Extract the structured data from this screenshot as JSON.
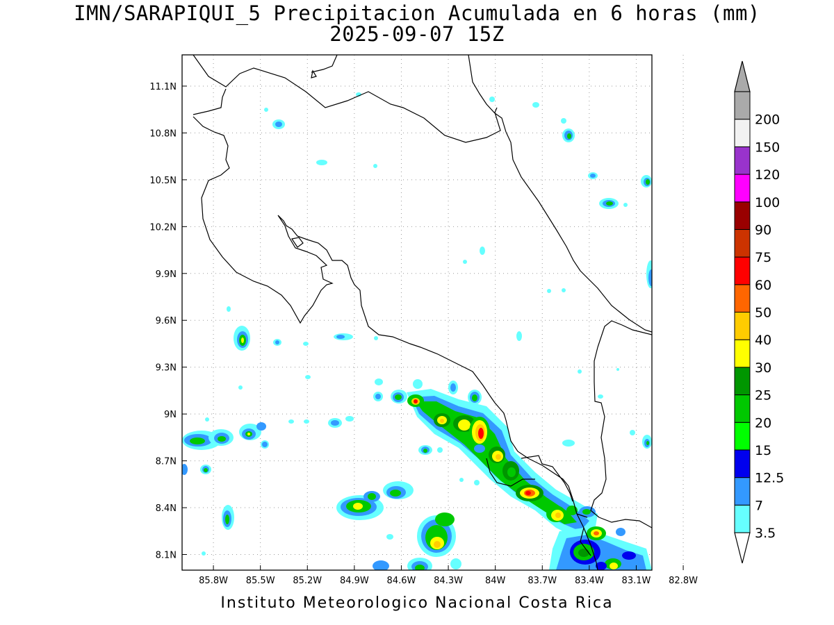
{
  "title": {
    "line1": "IMN/SARAPIQUI_5 Precipitacion Acumulada en 6 horas (mm)",
    "line2": "2025-09-07 15Z"
  },
  "footer": "Instituto Meteorologico Nacional Costa Rica",
  "map": {
    "lat_range": [
      8.0,
      11.3
    ],
    "lon_range": [
      -86.0,
      -83.0
    ],
    "lat_ticks": [
      {
        "value": 11.1,
        "label": "11.1N"
      },
      {
        "value": 10.8,
        "label": "10.8N"
      },
      {
        "value": 10.5,
        "label": "10.5N"
      },
      {
        "value": 10.2,
        "label": "10.2N"
      },
      {
        "value": 9.9,
        "label": "9.9N"
      },
      {
        "value": 9.6,
        "label": "9.6N"
      },
      {
        "value": 9.3,
        "label": "9.3N"
      },
      {
        "value": 9.0,
        "label": "9N"
      },
      {
        "value": 8.7,
        "label": "8.7N"
      },
      {
        "value": 8.4,
        "label": "8.4N"
      },
      {
        "value": 8.1,
        "label": "8.1N"
      }
    ],
    "lon_ticks": [
      {
        "value": -85.8,
        "label": "85.8W"
      },
      {
        "value": -85.5,
        "label": "85.5W"
      },
      {
        "value": -85.2,
        "label": "85.2W"
      },
      {
        "value": -84.9,
        "label": "84.9W"
      },
      {
        "value": -84.6,
        "label": "84.6W"
      },
      {
        "value": -84.3,
        "label": "84.3W"
      },
      {
        "value": -84.0,
        "label": "84W"
      },
      {
        "value": -83.7,
        "label": "83.7W"
      },
      {
        "value": -83.4,
        "label": "83.4W"
      },
      {
        "value": -83.1,
        "label": "83.1W"
      },
      {
        "value": -82.8,
        "label": "82.8W"
      }
    ],
    "grid": true
  },
  "colorbar": {
    "levels": [
      {
        "label": "3.5",
        "color": "#66ffff"
      },
      {
        "label": "7",
        "color": "#3399ff"
      },
      {
        "label": "12.5",
        "color": "#0000ee"
      },
      {
        "label": "15",
        "color": "#00ff00"
      },
      {
        "label": "20",
        "color": "#00c800"
      },
      {
        "label": "25",
        "color": "#009600"
      },
      {
        "label": "30",
        "color": "#ffff00"
      },
      {
        "label": "40",
        "color": "#ffcc00"
      },
      {
        "label": "50",
        "color": "#ff6600"
      },
      {
        "label": "60",
        "color": "#ff0000"
      },
      {
        "label": "75",
        "color": "#cc3300"
      },
      {
        "label": "90",
        "color": "#990000"
      },
      {
        "label": "100",
        "color": "#ff00ff"
      },
      {
        "label": "120",
        "color": "#9933cc"
      },
      {
        "label": "150",
        "color": "#f2f2f2"
      },
      {
        "label": "200",
        "color": "#aaaaaa"
      }
    ],
    "top_arrow_color": "#aaaaaa",
    "bottom_arrow_color": "#ffffff"
  }
}
